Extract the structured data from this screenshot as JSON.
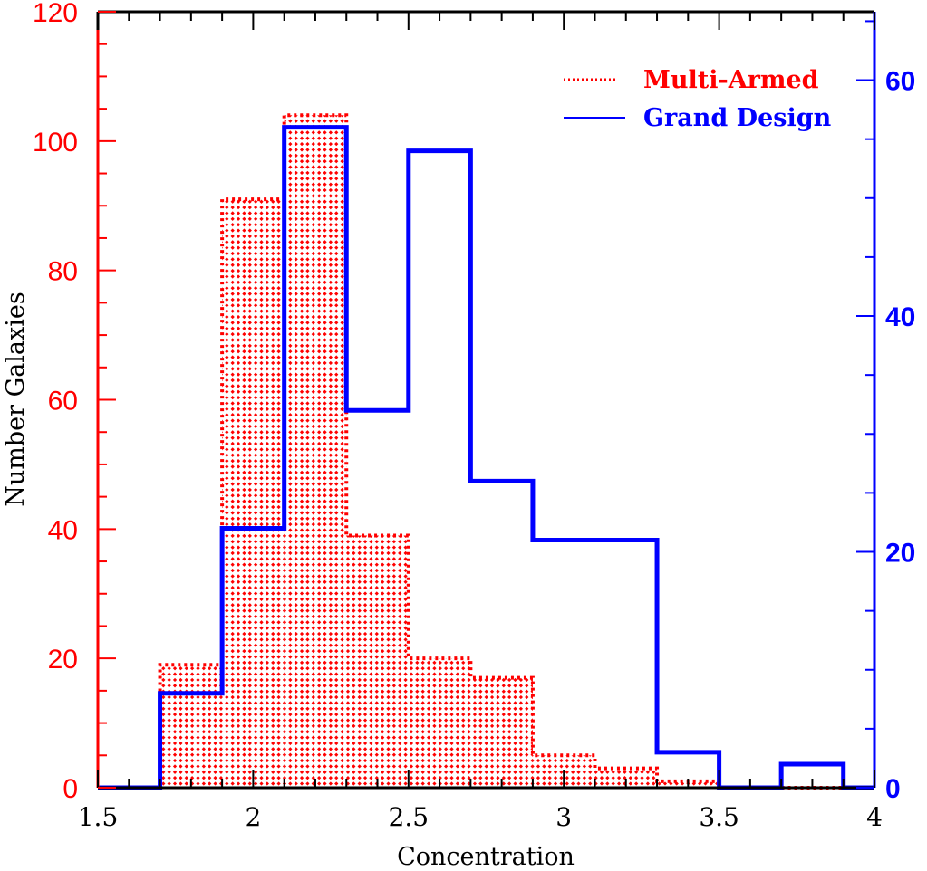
{
  "chart_data": {
    "type": "bar",
    "subtype": "histogram",
    "title": "",
    "xlabel": "Concentration",
    "ylabel": "Number Galaxies",
    "xlim": [
      1.5,
      4.0
    ],
    "ylim_left": [
      0,
      120
    ],
    "ylim_right": [
      0,
      65.8
    ],
    "x_ticks": [
      "1.5",
      "2",
      "2.5",
      "3",
      "3.5",
      "4"
    ],
    "y_ticks_left": [
      "0",
      "20",
      "40",
      "60",
      "80",
      "100",
      "120"
    ],
    "y_ticks_right": [
      "0",
      "20",
      "40",
      "60"
    ],
    "bin_edges": [
      1.5,
      1.7,
      1.9,
      2.1,
      2.3,
      2.5,
      2.7,
      2.9,
      3.1,
      3.3,
      3.5,
      3.7,
      3.9,
      4.0
    ],
    "series": [
      {
        "name": "Multi-Armed",
        "axis": "left",
        "color": "#ff0000",
        "style": "dotted outline, cross-hatched fill",
        "bins": [
          {
            "x0": 1.5,
            "x1": 1.7,
            "value": 0
          },
          {
            "x0": 1.7,
            "x1": 1.9,
            "value": 19
          },
          {
            "x0": 1.9,
            "x1": 2.1,
            "value": 91
          },
          {
            "x0": 2.1,
            "x1": 2.3,
            "value": 104
          },
          {
            "x0": 2.3,
            "x1": 2.5,
            "value": 39
          },
          {
            "x0": 2.5,
            "x1": 2.7,
            "value": 20
          },
          {
            "x0": 2.7,
            "x1": 2.9,
            "value": 17
          },
          {
            "x0": 2.9,
            "x1": 3.1,
            "value": 5
          },
          {
            "x0": 3.1,
            "x1": 3.3,
            "value": 3
          },
          {
            "x0": 3.3,
            "x1": 3.5,
            "value": 1
          },
          {
            "x0": 3.5,
            "x1": 3.7,
            "value": 0
          },
          {
            "x0": 3.7,
            "x1": 3.9,
            "value": 0
          },
          {
            "x0": 3.9,
            "x1": 4.0,
            "value": 0
          }
        ]
      },
      {
        "name": "Grand Design",
        "axis": "right",
        "color": "#0000ff",
        "style": "solid step line",
        "bins": [
          {
            "x0": 1.5,
            "x1": 1.7,
            "value": 0
          },
          {
            "x0": 1.7,
            "x1": 1.9,
            "value": 8
          },
          {
            "x0": 1.9,
            "x1": 2.1,
            "value": 22
          },
          {
            "x0": 2.1,
            "x1": 2.3,
            "value": 56
          },
          {
            "x0": 2.3,
            "x1": 2.5,
            "value": 32
          },
          {
            "x0": 2.5,
            "x1": 2.7,
            "value": 54
          },
          {
            "x0": 2.7,
            "x1": 2.9,
            "value": 26
          },
          {
            "x0": 2.9,
            "x1": 3.1,
            "value": 21
          },
          {
            "x0": 3.1,
            "x1": 3.3,
            "value": 21
          },
          {
            "x0": 3.3,
            "x1": 3.5,
            "value": 3
          },
          {
            "x0": 3.5,
            "x1": 3.7,
            "value": 0
          },
          {
            "x0": 3.7,
            "x1": 3.9,
            "value": 2
          },
          {
            "x0": 3.9,
            "x1": 4.0,
            "value": 0
          }
        ]
      }
    ],
    "legend": {
      "position": "upper right",
      "entries": [
        {
          "label": "Multi-Armed",
          "color": "#ff0000",
          "line": "dotted"
        },
        {
          "label": "Grand Design",
          "color": "#0000ff",
          "line": "solid"
        }
      ]
    },
    "grid": false
  },
  "colors": {
    "left_axis": "#ff0000",
    "right_axis": "#0000ff",
    "frame": "#000000"
  }
}
